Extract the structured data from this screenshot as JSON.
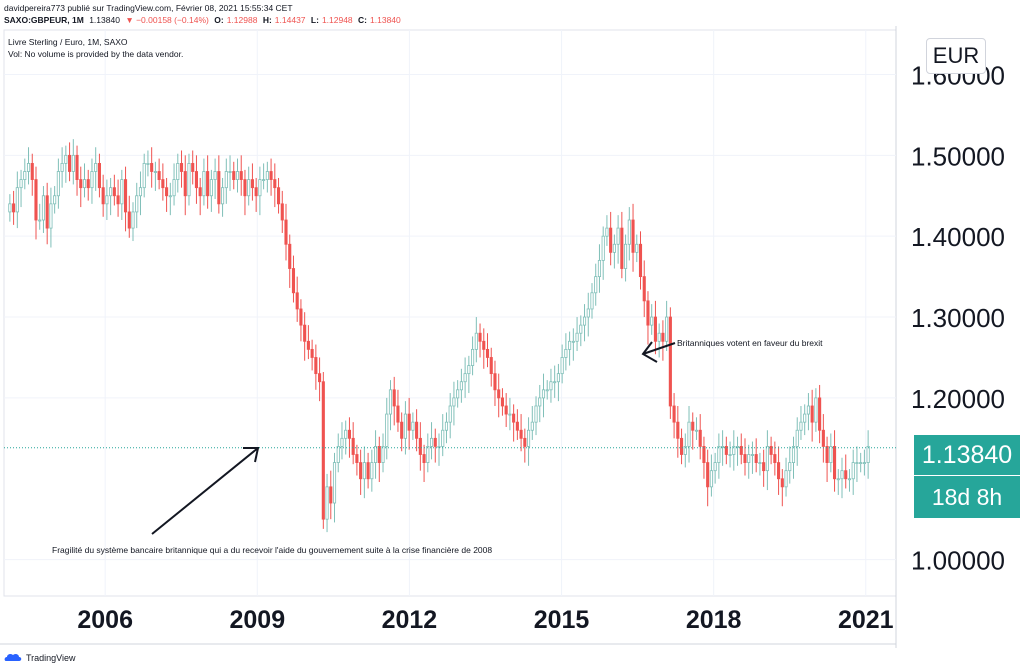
{
  "header": {
    "line1": "davidpereira773 publié sur TradingView.com, Février 08, 2021 15:55:34 CET",
    "symbol": "SAXO:GBPEUR, 1M",
    "last": "1.13840",
    "change": "▼ −0.00158 (−0.14%)",
    "o_label": "O:",
    "o_value": "1.12988",
    "h_label": "H:",
    "h_value": "1.14437",
    "l_label": "L:",
    "l_value": "1.12948",
    "c_label": "C:",
    "c_value": "1.13840"
  },
  "legend": {
    "title": "Livre Sterling / Euro, 1M, SAXO",
    "volume_note": "Vol: No volume is provided by the data vendor."
  },
  "currency_badge": "EUR",
  "price_tag": "1.13840",
  "countdown_tag": "18d 8h",
  "footer": {
    "brand": "TradingView"
  },
  "colors": {
    "up": "#26a69a",
    "down": "#ef5350",
    "wick_up": "#7fbfb8",
    "grid": "#f0f3fa"
  },
  "chart_data": {
    "type": "candlestick",
    "timeframe": "1M",
    "x_start": "2004-02",
    "x_end": "2021-02",
    "ylim": [
      0.955,
      1.655
    ],
    "yticks": [
      "1.60000",
      "1.50000",
      "1.40000",
      "1.30000",
      "1.20000",
      "1.00000"
    ],
    "ytick_values": [
      1.6,
      1.5,
      1.4,
      1.3,
      1.2,
      1.0
    ],
    "xticks": [
      "2006",
      "2009",
      "2012",
      "2015",
      "2018",
      "2021"
    ],
    "current_price": 1.1384,
    "closes": [
      1.44,
      1.43,
      1.46,
      1.47,
      1.48,
      1.49,
      1.47,
      1.42,
      1.42,
      1.45,
      1.41,
      1.44,
      1.45,
      1.48,
      1.49,
      1.5,
      1.48,
      1.5,
      1.47,
      1.46,
      1.47,
      1.46,
      1.48,
      1.49,
      1.46,
      1.44,
      1.45,
      1.46,
      1.45,
      1.44,
      1.47,
      1.43,
      1.41,
      1.43,
      1.45,
      1.46,
      1.49,
      1.49,
      1.48,
      1.48,
      1.47,
      1.46,
      1.45,
      1.45,
      1.47,
      1.49,
      1.48,
      1.45,
      1.49,
      1.48,
      1.46,
      1.45,
      1.48,
      1.45,
      1.47,
      1.48,
      1.44,
      1.46,
      1.48,
      1.48,
      1.47,
      1.48,
      1.47,
      1.45,
      1.47,
      1.46,
      1.45,
      1.47,
      1.47,
      1.48,
      1.47,
      1.46,
      1.44,
      1.42,
      1.39,
      1.36,
      1.33,
      1.31,
      1.29,
      1.27,
      1.26,
      1.25,
      1.23,
      1.22,
      1.05,
      1.09,
      1.07,
      1.12,
      1.14,
      1.15,
      1.16,
      1.15,
      1.13,
      1.12,
      1.1,
      1.12,
      1.1,
      1.12,
      1.14,
      1.12,
      1.14,
      1.18,
      1.21,
      1.19,
      1.17,
      1.15,
      1.18,
      1.16,
      1.17,
      1.15,
      1.13,
      1.12,
      1.14,
      1.15,
      1.14,
      1.14,
      1.16,
      1.17,
      1.19,
      1.2,
      1.21,
      1.22,
      1.23,
      1.24,
      1.26,
      1.28,
      1.27,
      1.26,
      1.25,
      1.23,
      1.21,
      1.2,
      1.19,
      1.18,
      1.18,
      1.17,
      1.16,
      1.15,
      1.14,
      1.16,
      1.17,
      1.19,
      1.2,
      1.21,
      1.21,
      1.22,
      1.22,
      1.23,
      1.25,
      1.26,
      1.27,
      1.27,
      1.28,
      1.29,
      1.3,
      1.31,
      1.33,
      1.35,
      1.37,
      1.4,
      1.41,
      1.38,
      1.39,
      1.41,
      1.36,
      1.39,
      1.42,
      1.38,
      1.39,
      1.35,
      1.32,
      1.29,
      1.3,
      1.27,
      1.28,
      1.27,
      1.3,
      1.19,
      1.17,
      1.15,
      1.13,
      1.14,
      1.17,
      1.16,
      1.16,
      1.14,
      1.12,
      1.09,
      1.11,
      1.12,
      1.14,
      1.14,
      1.13,
      1.13,
      1.14,
      1.14,
      1.13,
      1.12,
      1.13,
      1.13,
      1.12,
      1.12,
      1.11,
      1.14,
      1.13,
      1.12,
      1.1,
      1.09,
      1.11,
      1.12,
      1.14,
      1.16,
      1.17,
      1.18,
      1.19,
      1.17,
      1.2,
      1.16,
      1.14,
      1.12,
      1.14,
      1.1,
      1.1,
      1.11,
      1.1,
      1.1,
      1.12,
      1.12,
      1.12,
      1.12,
      1.14
    ],
    "annotations": [
      "Fragilité du système bancaire britannique qui a du recevoir l'aide du gouvernement suite à la crise financière de 2008",
      "Britanniques votent en faveur du brexit"
    ]
  }
}
